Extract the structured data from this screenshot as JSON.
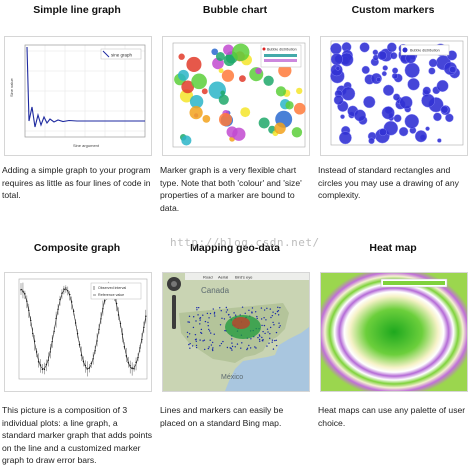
{
  "cards": [
    {
      "title": "Simple line graph",
      "desc": "Adding a simple graph to your program requires as little as four lines of code in total.",
      "legend": "sine graph",
      "ylabel": "Sine value",
      "xlabel": "Sine argument"
    },
    {
      "title": "Bubble chart",
      "desc": "Marker graph is a very flexible chart type. Note that both 'colour' and 'size' properties of a marker are bound to data.",
      "legend": "Bubble distribution"
    },
    {
      "title": "Custom markers",
      "desc": "Instead of standard rectangles and circles you may use a drawing of any complexity.",
      "legend": "Bubble distribution"
    },
    {
      "title": "Composite graph",
      "desc": "This picture is a composition of 3 individual plots: a line graph, a standard marker graph that adds points on the line and a customized marker graph to draw error bars.",
      "legend1": "Observed interval",
      "legend2": "Reference value"
    },
    {
      "title": "Mapping geo-data",
      "desc": "Lines and markers can easily be placed on a standard Bing map.",
      "map_canada": "Canada",
      "map_mexico": "México",
      "map_tab1": "Road",
      "map_tab2": "Aerial",
      "map_tab3": "Bird's eye"
    },
    {
      "title": "Heat map",
      "desc": "Heat maps can use any palette of user choice."
    }
  ],
  "watermark": "http://blog.csdn.net/",
  "icons": [
    "map-navigation-icon",
    "map-zoom-icon"
  ]
}
